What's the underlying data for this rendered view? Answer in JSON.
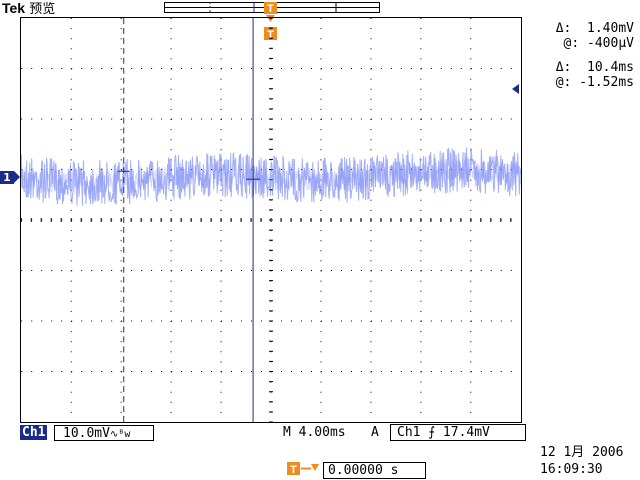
{
  "header": {
    "brand": "Tek",
    "mode": "预览"
  },
  "readouts": {
    "delta_v_label": "Δ:",
    "delta_v_value": "1.40mV",
    "at_v_label": "@:",
    "at_v_value": "-400μV",
    "delta_t_label": "Δ:",
    "delta_t_value": "10.4ms",
    "at_t_label": "@:",
    "at_t_value": "-1.52ms"
  },
  "channel": {
    "marker": "1",
    "badge": "Ch1",
    "scale": "10.0mV",
    "coupling_symbol": "∿ᴮw"
  },
  "status": {
    "timebase": "M 4.00ms",
    "trigger_mode": "A",
    "trigger_channel": "Ch1",
    "trigger_slope": "⨍",
    "trigger_level": "17.4mV",
    "date": "12 1月  2006",
    "time": "16:09:30",
    "position_value": "0.00000 s"
  },
  "trigger_marker": "T",
  "colors": {
    "trace": "#5a6ef0",
    "channel_marker": "#1a2c8a",
    "trigger": "#f08c1e",
    "cursor_line": "#1a2c8a"
  }
}
